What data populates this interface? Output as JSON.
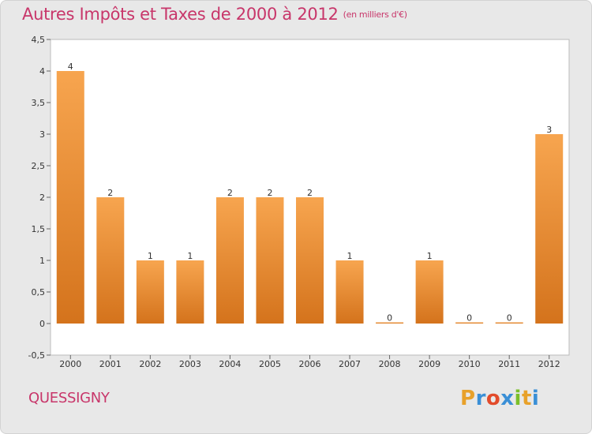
{
  "title": "Autres Impôts et Taxes de 2000 à 2012",
  "unit_note": "(en milliers d'€)",
  "city": "QUESSIGNY",
  "logo": {
    "letters": [
      "P",
      "r",
      "o",
      "x",
      "i",
      "t",
      "i"
    ],
    "colors": [
      "#e8a12a",
      "#3a8fd6",
      "#e24b2b",
      "#3a8fd6",
      "#7bbf2a",
      "#e8a12a",
      "#3a8fd6"
    ]
  },
  "colors": {
    "title": "#c8366a",
    "bar_light": "#f7a54f",
    "bar_dark": "#d4731c",
    "background": "#e8e8e8"
  },
  "chart_data": {
    "type": "bar",
    "title": "Autres Impôts et Taxes de 2000 à 2012",
    "categories": [
      "2000",
      "2001",
      "2002",
      "2003",
      "2004",
      "2005",
      "2006",
      "2007",
      "2008",
      "2009",
      "2010",
      "2011",
      "2012"
    ],
    "values": [
      4,
      2,
      1,
      1,
      2,
      2,
      2,
      1,
      0,
      1,
      0,
      0,
      3
    ],
    "ylim": [
      -0.5,
      4.5
    ],
    "yticks": [
      "-0,5",
      "0",
      "0,5",
      "1",
      "1,5",
      "2",
      "2,5",
      "3",
      "3,5",
      "4",
      "4,5"
    ],
    "ytick_values": [
      -0.5,
      0,
      0.5,
      1,
      1.5,
      2,
      2.5,
      3,
      3.5,
      4,
      4.5
    ],
    "grid": false,
    "legend": "none"
  }
}
